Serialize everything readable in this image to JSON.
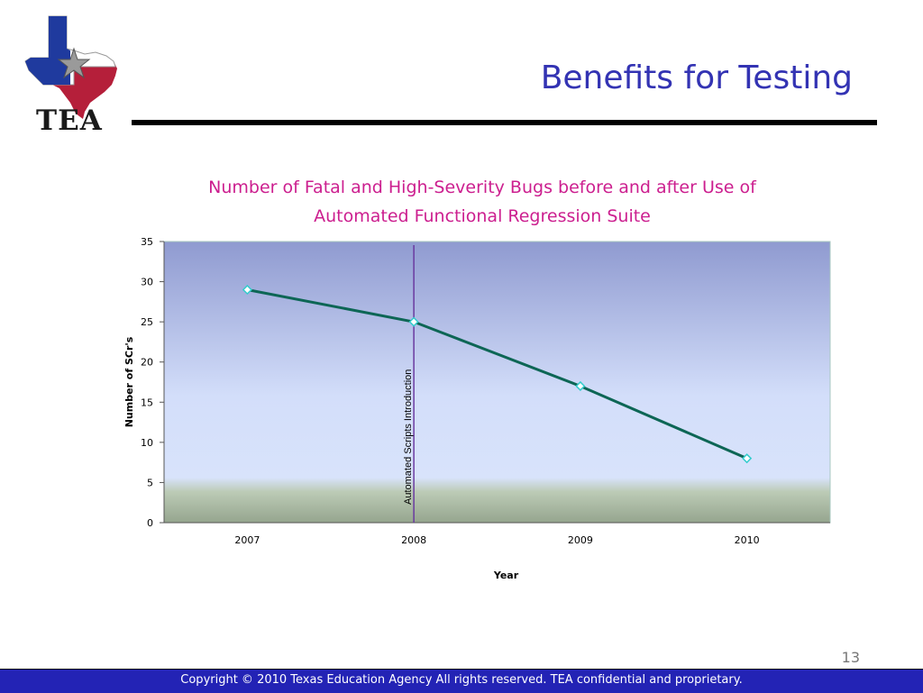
{
  "logo": {
    "text": "TEA"
  },
  "slide": {
    "title": "Benefits for Testing",
    "page_number": "13"
  },
  "footer": {
    "text": "Copyright © 2010 Texas Education Agency All rights reserved. TEA confidential and proprietary."
  },
  "colors": {
    "title": "#3333b3",
    "chart_title": "#cc1f8f",
    "line": "#0d6655",
    "marker_fill": "#ffffff",
    "marker_stroke": "#33cccc",
    "annotation_line": "#6a3aa0",
    "footer_bg": "#2323b5"
  },
  "chart_data": {
    "type": "line",
    "title": "Number of  Fatal and High-Severity Bugs before and after Use of Automated Functional Regression Suite",
    "title_lines": [
      "Number of  Fatal and High-Severity Bugs before and after Use of",
      "Automated Functional Regression Suite"
    ],
    "xlabel": "Year",
    "ylabel": "Number of  SCr's",
    "categories": [
      "2007",
      "2008",
      "2009",
      "2010"
    ],
    "values": [
      29,
      25,
      17,
      8
    ],
    "ylim": [
      0,
      35
    ],
    "yticks": [
      "0",
      "5",
      "10",
      "15",
      "20",
      "25",
      "30",
      "35"
    ],
    "grid": false,
    "legend": "none",
    "annotation": {
      "label": "Automated Scripts Introduction",
      "x": "2008"
    }
  }
}
